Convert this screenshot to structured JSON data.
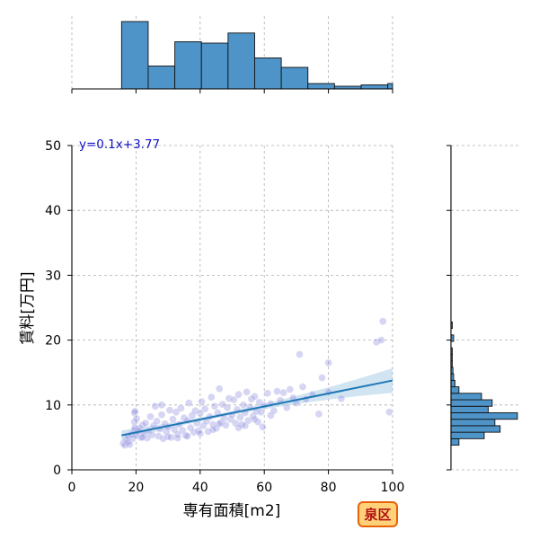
{
  "chart_data": {
    "type": "scatter",
    "xlabel": "専有面積[m2]",
    "ylabel": "賃料[万円]",
    "xlim": [
      0,
      100
    ],
    "ylim": [
      0,
      50
    ],
    "xticks": [
      "0",
      "20",
      "40",
      "60",
      "80",
      "100"
    ],
    "yticks": [
      "0",
      "10",
      "20",
      "30",
      "40",
      "50"
    ],
    "grid": true,
    "regression": {
      "equation": "y=0.1x+3.77",
      "slope": 0.1,
      "intercept": 3.77,
      "x_range": [
        15.5,
        100
      ],
      "ci_color": "#aacde6",
      "line_color": "#1f77b4"
    },
    "series": [
      {
        "color": "#6a6ad8",
        "points": [
          [
            16,
            4.1
          ],
          [
            16.5,
            3.8
          ],
          [
            17,
            4.6
          ],
          [
            17.5,
            5.2
          ],
          [
            17.5,
            4.3
          ],
          [
            18,
            3.9
          ],
          [
            18.5,
            5.5
          ],
          [
            19,
            4.8
          ],
          [
            19.5,
            6.1
          ],
          [
            19.5,
            8.8
          ],
          [
            19.5,
            7.4
          ],
          [
            19.6,
            6.5
          ],
          [
            19.7,
            9.0
          ],
          [
            20,
            5.3
          ],
          [
            20.2,
            7.9
          ],
          [
            20.5,
            5.9
          ],
          [
            21,
            6.4
          ],
          [
            21.5,
            5.0
          ],
          [
            22,
            6.9
          ],
          [
            22.5,
            5.6
          ],
          [
            23,
            7.2
          ],
          [
            23.5,
            4.9
          ],
          [
            24,
            6.0
          ],
          [
            24.5,
            8.2
          ],
          [
            25,
            5.4
          ],
          [
            25.5,
            6.8
          ],
          [
            26,
            9.8
          ],
          [
            26.5,
            7.5
          ],
          [
            27,
            5.2
          ],
          [
            27.5,
            6.3
          ],
          [
            28,
            8.5
          ],
          [
            28.5,
            4.8
          ],
          [
            29,
            7.1
          ],
          [
            29.5,
            5.9
          ],
          [
            30,
            6.6
          ],
          [
            30.5,
            9.2
          ],
          [
            31,
            5.0
          ],
          [
            31.5,
            7.8
          ],
          [
            32,
            6.2
          ],
          [
            32.5,
            8.9
          ],
          [
            33,
            5.5
          ],
          [
            33.5,
            7.0
          ],
          [
            34,
            9.5
          ],
          [
            34.5,
            6.1
          ],
          [
            35,
            8.0
          ],
          [
            35.5,
            5.3
          ],
          [
            36,
            7.6
          ],
          [
            36.5,
            10.3
          ],
          [
            37,
            6.5
          ],
          [
            37.5,
            8.4
          ],
          [
            38,
            5.8
          ],
          [
            38.5,
            9.1
          ],
          [
            39,
            7.2
          ],
          [
            39.5,
            6.0
          ],
          [
            40,
            8.7
          ],
          [
            40.5,
            10.5
          ],
          [
            41,
            6.8
          ],
          [
            41.5,
            9.4
          ],
          [
            42,
            7.5
          ],
          [
            42.5,
            5.9
          ],
          [
            43,
            8.2
          ],
          [
            43.5,
            11.2
          ],
          [
            44,
            7.0
          ],
          [
            44.5,
            9.8
          ],
          [
            45,
            6.4
          ],
          [
            45.5,
            8.8
          ],
          [
            46,
            12.5
          ],
          [
            46.5,
            7.3
          ],
          [
            47,
            10.1
          ],
          [
            47.5,
            8.0
          ],
          [
            48,
            6.9
          ],
          [
            48.5,
            9.6
          ],
          [
            49,
            11.0
          ],
          [
            49.5,
            7.8
          ],
          [
            50,
            8.5
          ],
          [
            50.5,
            10.8
          ],
          [
            51,
            7.2
          ],
          [
            51.5,
            9.3
          ],
          [
            52,
            11.6
          ],
          [
            52.5,
            8.1
          ],
          [
            53,
            7.0
          ],
          [
            53.5,
            10.0
          ],
          [
            54,
            8.8
          ],
          [
            54.5,
            12.0
          ],
          [
            55,
            7.6
          ],
          [
            55.5,
            9.7
          ],
          [
            56,
            10.9
          ],
          [
            56.5,
            8.3
          ],
          [
            57,
            11.3
          ],
          [
            57.5,
            9.0
          ],
          [
            58,
            7.4
          ],
          [
            58.5,
            10.4
          ],
          [
            59,
            8.9
          ],
          [
            59.5,
            6.6
          ],
          [
            60,
            9.9
          ],
          [
            61,
            11.8
          ],
          [
            62,
            10.2
          ],
          [
            63,
            9.1
          ],
          [
            64,
            12.1
          ],
          [
            65,
            10.7
          ],
          [
            66,
            11.9
          ],
          [
            67,
            9.6
          ],
          [
            68,
            12.4
          ],
          [
            69,
            11.1
          ],
          [
            70,
            10.3
          ],
          [
            71,
            17.8
          ],
          [
            72,
            12.8
          ],
          [
            73,
            10.9
          ],
          [
            75,
            11.6
          ],
          [
            77,
            8.6
          ],
          [
            78,
            14.2
          ],
          [
            80,
            16.5
          ],
          [
            80,
            12.0
          ],
          [
            84,
            11.0
          ],
          [
            95,
            19.7
          ],
          [
            97,
            22.9
          ],
          [
            99,
            8.9
          ],
          [
            96.5,
            20.0
          ],
          [
            22,
            5.0
          ],
          [
            44,
            6.2
          ],
          [
            52,
            6.5
          ],
          [
            36,
            5.2
          ],
          [
            40,
            5.6
          ],
          [
            57,
            7.8
          ],
          [
            62,
            8.4
          ],
          [
            28,
            10.0
          ],
          [
            33,
            4.9
          ],
          [
            46,
            7.1
          ],
          [
            54,
            6.8
          ],
          [
            30,
            5.1
          ]
        ]
      }
    ],
    "top_histogram": {
      "bin_edges": [
        15.5,
        23.8,
        32.1,
        40.4,
        48.7,
        57.0,
        65.3,
        73.6,
        81.9,
        90.2,
        98.5,
        100
      ],
      "relative_heights": [
        1.0,
        0.34,
        0.7,
        0.68,
        0.83,
        0.46,
        0.32,
        0.08,
        0.04,
        0.06,
        0.08
      ]
    },
    "right_histogram": {
      "bin_edges": [
        3.8,
        4.8,
        5.8,
        6.8,
        7.8,
        8.8,
        9.8,
        10.8,
        11.8,
        12.8,
        13.8,
        14.8,
        15.8,
        16.8,
        17.8,
        18.8,
        19.8,
        20.8,
        21.8,
        22.8
      ],
      "relative_heights": [
        0.12,
        0.5,
        0.74,
        0.66,
        1.0,
        0.56,
        0.62,
        0.46,
        0.12,
        0.06,
        0.04,
        0.03,
        0.02,
        0.02,
        0.02,
        0.0,
        0.04,
        0.0,
        0.02
      ]
    }
  },
  "badge": {
    "label": "泉区",
    "fill": "#ffd27a",
    "border": "#e8620a",
    "text_color": "#b01010"
  }
}
